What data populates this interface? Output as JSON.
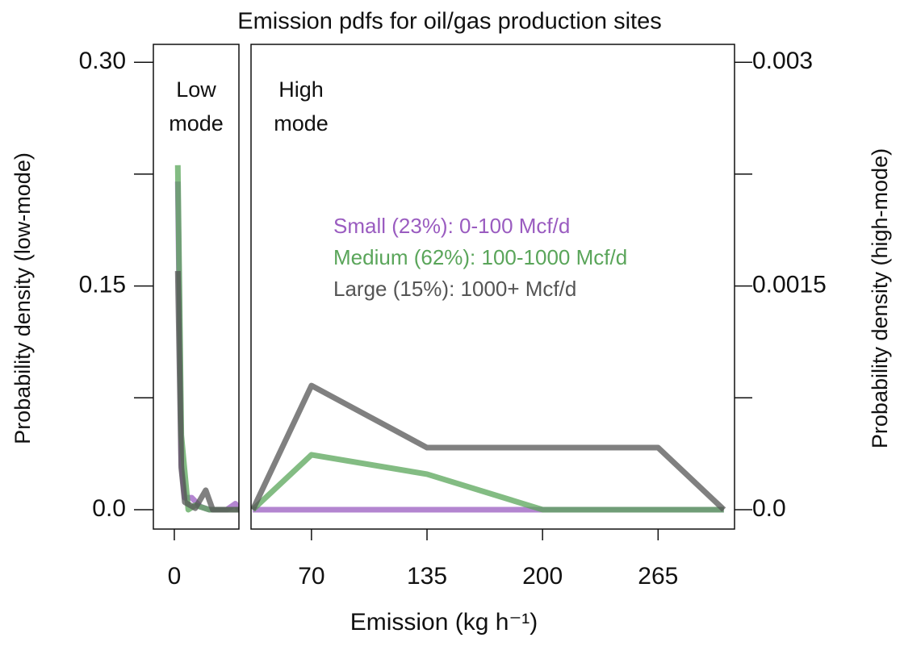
{
  "chart_data": [
    {
      "type": "line",
      "title": "Emission pdfs for oil/gas production sites",
      "xlabel": "Emission (kg h⁻¹)",
      "ylabel": "Probability density (low-mode)",
      "annotation": [
        "Low",
        "mode"
      ],
      "xlim": [
        -12,
        37
      ],
      "xticks": [
        0
      ],
      "ylim": [
        -0.013,
        0.312
      ],
      "yticks": [
        {
          "value": 0,
          "label": "0.0"
        },
        0.15,
        {
          "value": 0.3,
          "label": "0.30"
        }
      ],
      "yminor_ticks": [
        0.075,
        0.225
      ],
      "series": [
        {
          "color": "#9a5cc0",
          "x": [
            2,
            4,
            6,
            10,
            15,
            20,
            30,
            35,
            37
          ],
          "values": [
            0.22,
            0.03,
            0.008,
            0.008,
            0.002,
            0,
            0,
            0.004,
            0
          ]
        },
        {
          "color": "#5aa55a",
          "x": [
            2,
            4,
            8,
            12,
            20,
            37
          ],
          "values": [
            0.231,
            0.05,
            0,
            0.003,
            0,
            0
          ]
        },
        {
          "color": "#555555",
          "x": [
            2,
            4,
            6,
            12,
            18,
            22,
            37
          ],
          "values": [
            0.16,
            0.028,
            0.005,
            0.001,
            0.013,
            0,
            0
          ]
        }
      ]
    },
    {
      "type": "line",
      "ylabel": "Probability density (high-mode)",
      "annotation": [
        "High",
        "mode"
      ],
      "xlim": [
        36,
        308
      ],
      "xticks": [
        70,
        135,
        200,
        265
      ],
      "y2lim": [
        -0.00013,
        0.00312
      ],
      "y2ticks": [
        {
          "value": 0,
          "label": "0.0"
        },
        0.0015,
        0.003
      ],
      "y2minor_ticks": [
        0.00075,
        0.00225
      ],
      "series": [
        {
          "name": "Small (23%): 0-100 Mcf/d",
          "color": "#9a5cc0",
          "axis": "y2",
          "x": [
            37,
            70,
            135,
            200,
            265,
            302
          ],
          "values": [
            0,
            0,
            0,
            0,
            0,
            0
          ]
        },
        {
          "name": "Medium (62%): 100-1000 Mcf/d",
          "color": "#5aa55a",
          "axis": "y2",
          "x": [
            37,
            70,
            135,
            200,
            265,
            302
          ],
          "values": [
            0,
            0.000368,
            0.000238,
            0,
            0,
            0
          ]
        },
        {
          "name": "Large (15%): 1000+ Mcf/d",
          "color": "#555555",
          "axis": "y2",
          "x": [
            37,
            70,
            135,
            200,
            265,
            302
          ],
          "values": [
            0,
            0.000832,
            0.000416,
            0.000416,
            0.000416,
            0
          ]
        }
      ]
    }
  ]
}
